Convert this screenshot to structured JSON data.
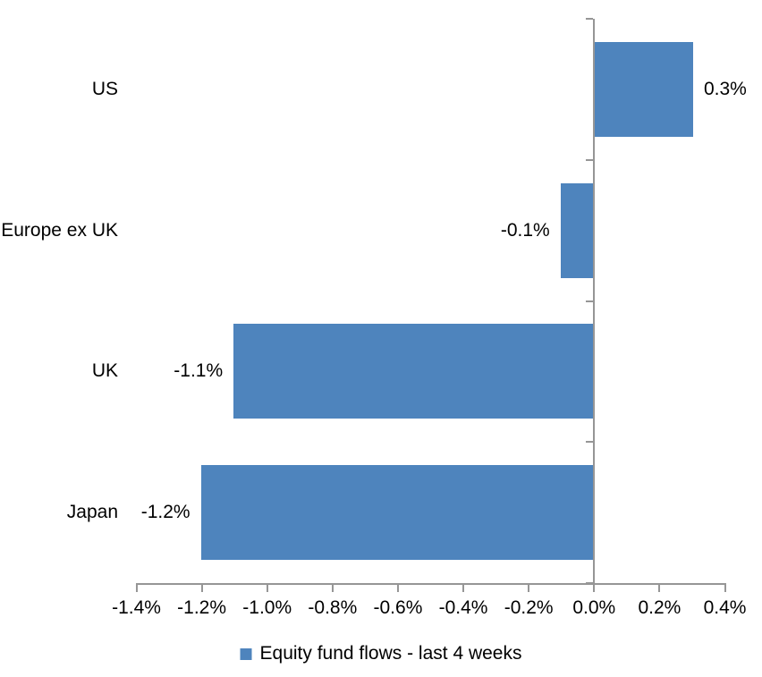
{
  "chart_data": {
    "type": "bar",
    "orientation": "horizontal",
    "title": "",
    "categories": [
      "US",
      "Europe ex UK",
      "UK",
      "Japan"
    ],
    "series": [
      {
        "name": "Equity fund flows - last 4 weeks",
        "values": [
          0.3,
          -0.1,
          -1.1,
          -1.2
        ],
        "data_labels": [
          "0.3%",
          "-0.1%",
          "-1.1%",
          "-1.2%"
        ]
      }
    ],
    "xlabel": "",
    "ylabel": "",
    "xlim": [
      -1.4,
      0.4
    ],
    "x_ticks": [
      -1.4,
      -1.2,
      -1.0,
      -0.8,
      -0.6,
      -0.4,
      -0.2,
      0.0,
      0.2,
      0.4
    ],
    "x_tick_labels": [
      "-1.4%",
      "-1.2%",
      "-1.0%",
      "-0.8%",
      "-0.6%",
      "-0.4%",
      "-0.2%",
      "0.0%",
      "0.2%",
      "0.4%"
    ],
    "grid": false,
    "legend": {
      "position": "bottom",
      "label": "Equity fund flows - last 4 weeks"
    },
    "colors": {
      "bar": "#4E84BD",
      "axis": "#969696",
      "text": "#000000",
      "background": "#FFFFFF"
    }
  }
}
